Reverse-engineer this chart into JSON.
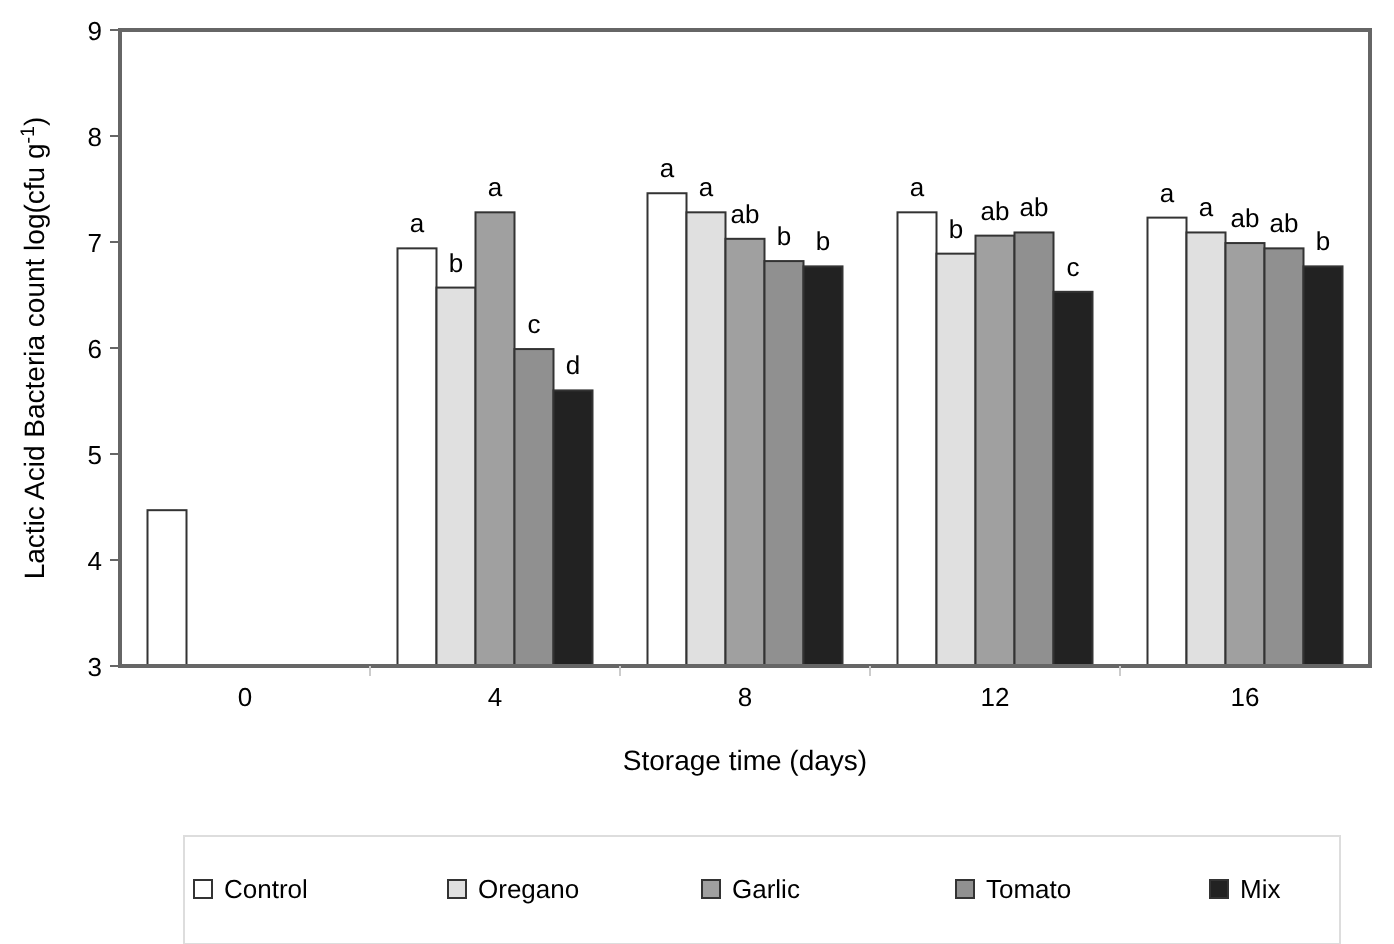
{
  "chart_data": {
    "type": "bar",
    "xlabel": "Storage time (days)",
    "ylabel": "Lactic Acid Bacteria count log(cfu g$^{-1}$)",
    "categories": [
      "0",
      "4",
      "8",
      "12",
      "16"
    ],
    "series": [
      {
        "name": "Control",
        "color": "#ffffff",
        "values": [
          4.47,
          6.94,
          7.46,
          7.28,
          7.23
        ],
        "value_labels": [
          null,
          "a",
          "a",
          "a",
          "a"
        ]
      },
      {
        "name": "Oregano",
        "color": "#e0e0e0",
        "values": [
          null,
          6.57,
          7.28,
          6.89,
          7.09
        ],
        "value_labels": [
          null,
          "b",
          "a",
          "b",
          "a"
        ]
      },
      {
        "name": "Garlic",
        "color": "#a0a0a0",
        "values": [
          null,
          7.28,
          7.03,
          7.06,
          6.99
        ],
        "value_labels": [
          null,
          "a",
          "ab",
          "ab",
          "ab"
        ]
      },
      {
        "name": "Tomato",
        "color": "#909090",
        "values": [
          null,
          5.99,
          6.82,
          7.09,
          6.94
        ],
        "value_labels": [
          null,
          "c",
          "b",
          "ab",
          "ab"
        ]
      },
      {
        "name": "Mix",
        "color": "#222222",
        "values": [
          null,
          5.6,
          6.77,
          6.53,
          6.77
        ],
        "value_labels": [
          null,
          "d",
          "b",
          "c",
          "b"
        ]
      }
    ],
    "ylim": [
      3,
      9
    ],
    "yticks": [
      3,
      4,
      5,
      6,
      7,
      8,
      9
    ],
    "grid": false,
    "legend": "bottom"
  }
}
